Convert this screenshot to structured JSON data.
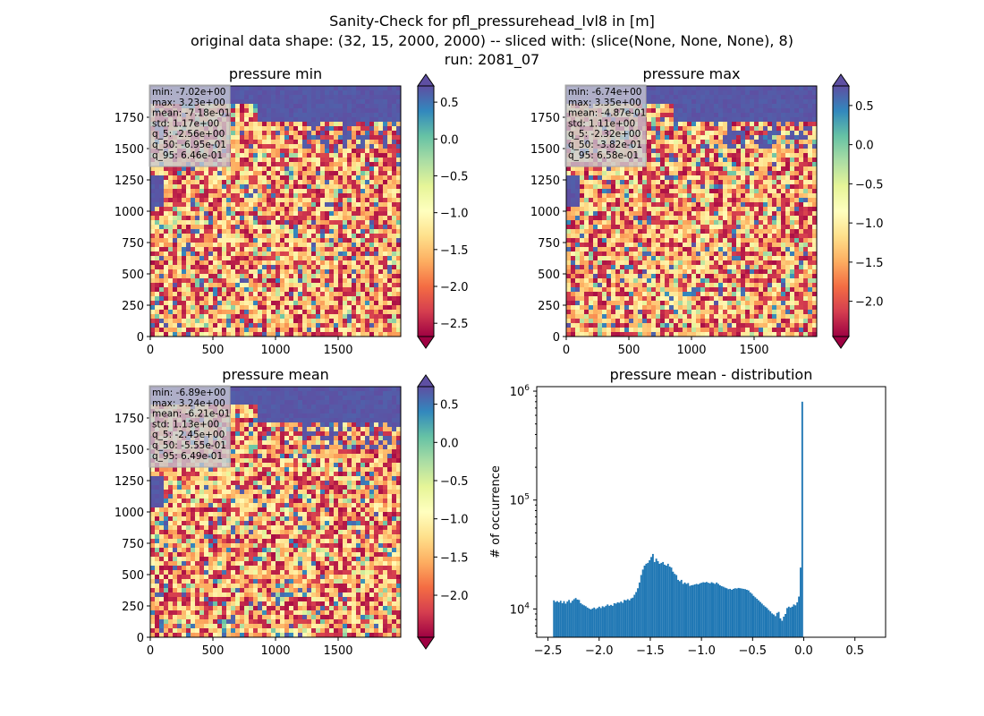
{
  "figure": {
    "title_lines": [
      "Sanity-Check for pfl_pressurehead_lvl8 in [m]",
      "original data shape: (32, 15, 2000, 2000) -- sliced with: (slice(None, None, None), 8)",
      "run: 2081_07"
    ]
  },
  "chart_data": [
    {
      "type": "heatmap",
      "title": "pressure min",
      "xlim": [
        0,
        2000
      ],
      "ylim": [
        0,
        2000
      ],
      "xticks": [
        0,
        500,
        1000,
        1500
      ],
      "yticks": [
        0,
        250,
        500,
        750,
        1000,
        1250,
        1500,
        1750
      ],
      "colormap": "Spectral",
      "colorbar": {
        "vmin": -2.68,
        "vmax": 0.72,
        "ticks": [
          -2.5,
          -2.0,
          -1.5,
          -1.0,
          -0.5,
          0.0,
          0.5
        ],
        "extend": "both"
      },
      "stats": [
        "min: -7.02e+00",
        "max: 3.23e+00",
        "mean: -7.18e-01",
        "std: 1.17e+00",
        "q_5: -2.56e+00",
        "q_50: -6.95e-01",
        "q_95: 6.46e-01"
      ]
    },
    {
      "type": "heatmap",
      "title": "pressure max",
      "xlim": [
        0,
        2000
      ],
      "ylim": [
        0,
        2000
      ],
      "xticks": [
        0,
        500,
        1000,
        1500
      ],
      "yticks": [
        0,
        250,
        500,
        750,
        1000,
        1250,
        1500,
        1750
      ],
      "colormap": "Spectral",
      "colorbar": {
        "vmin": -2.45,
        "vmax": 0.75,
        "ticks": [
          -2.0,
          -1.5,
          -1.0,
          -0.5,
          0.0,
          0.5
        ],
        "extend": "both"
      },
      "stats": [
        "min: -6.74e+00",
        "max: 3.35e+00",
        "mean: -4.87e-01",
        "std: 1.11e+00",
        "q_5: -2.32e+00",
        "q_50: -3.82e-01",
        "q_95: 6.58e-01"
      ]
    },
    {
      "type": "heatmap",
      "title": "pressure mean",
      "xlim": [
        0,
        2000
      ],
      "ylim": [
        0,
        2000
      ],
      "xticks": [
        0,
        500,
        1000,
        1500
      ],
      "yticks": [
        0,
        250,
        500,
        750,
        1000,
        1250,
        1500,
        1750
      ],
      "colormap": "Spectral",
      "colorbar": {
        "vmin": -2.55,
        "vmax": 0.73,
        "ticks": [
          -2.0,
          -1.5,
          -1.0,
          -0.5,
          0.0,
          0.5
        ],
        "extend": "both"
      },
      "stats": [
        "min: -6.89e+00",
        "max: 3.24e+00",
        "mean: -6.21e-01",
        "std: 1.13e+00",
        "q_5: -2.45e+00",
        "q_50: -5.55e-01",
        "q_95: 6.49e-01"
      ]
    },
    {
      "type": "bar",
      "title": "pressure mean - distribution",
      "ylabel": "# of occurrence",
      "yscale": "log",
      "xlim": [
        -2.61,
        0.8
      ],
      "ylim": [
        5500,
        1100000
      ],
      "xticks": [
        -2.5,
        -2.0,
        -1.5,
        -1.0,
        -0.5,
        0.0,
        0.5
      ],
      "yticks": [
        10000,
        100000,
        1000000
      ],
      "ytick_labels": [
        {
          "base": "10",
          "exp": "4"
        },
        {
          "base": "10",
          "exp": "5"
        },
        {
          "base": "10",
          "exp": "6"
        }
      ],
      "bin_start": -2.45,
      "bin_width": 0.0164,
      "bar_color": "#1f77b4",
      "values": [
        12000,
        11600,
        11800,
        11500,
        11900,
        11300,
        11800,
        11200,
        11700,
        12100,
        11400,
        11900,
        12300,
        12600,
        12200,
        12100,
        11300,
        11000,
        10800,
        10600,
        10300,
        10100,
        9900,
        10100,
        10300,
        10000,
        10200,
        10500,
        10200,
        10600,
        10400,
        10700,
        11000,
        10700,
        10900,
        10700,
        11300,
        11200,
        11500,
        11400,
        11700,
        11400,
        12100,
        12000,
        12300,
        12000,
        12500,
        12700,
        13500,
        14300,
        15500,
        17500,
        20500,
        23000,
        25000,
        26000,
        26500,
        28000,
        30000,
        32000,
        27000,
        29000,
        27500,
        26000,
        26500,
        27000,
        25500,
        25000,
        26000,
        24500,
        24000,
        22000,
        21000,
        20500,
        18500,
        18000,
        18500,
        17000,
        17500,
        17000,
        17300,
        16300,
        16500,
        16600,
        16800,
        17000,
        16800,
        17200,
        17400,
        17600,
        17500,
        17700,
        17400,
        17200,
        17600,
        17300,
        17000,
        17500,
        17000,
        16500,
        16200,
        16000,
        15700,
        15500,
        15200,
        15300,
        15000,
        15300,
        15500,
        15400,
        15600,
        15500,
        15400,
        15300,
        15200,
        15000,
        14800,
        14200,
        13800,
        13200,
        12800,
        12400,
        12000,
        11600,
        11200,
        10800,
        10500,
        10200,
        9800,
        9500,
        9100,
        8900,
        8600,
        9200,
        9400,
        8200,
        7800,
        8500,
        9000,
        10200,
        10500,
        10300,
        10500,
        11000,
        10800,
        11500,
        13000,
        24000,
        800000
      ]
    }
  ]
}
